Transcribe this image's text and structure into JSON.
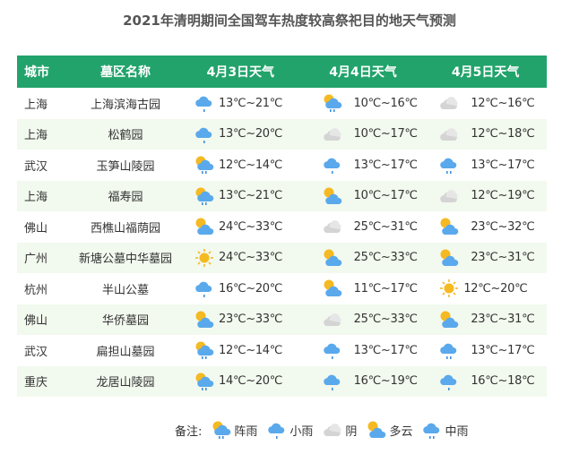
{
  "title": "2021年清明期间全国驾车热度较高祭祀目的地天气预测",
  "headers": [
    "城市",
    "墓区名称",
    "4月3日天气",
    "4月4日天气",
    "4月5日天气"
  ],
  "rows": [
    {
      "city": "上海",
      "name": "上海滨海古园",
      "days": [
        {
          "icon": "light-rain",
          "temp": "13℃~21℃"
        },
        {
          "icon": "shower",
          "temp": "10℃~16℃"
        },
        {
          "icon": "overcast",
          "temp": "12℃~16℃"
        }
      ]
    },
    {
      "city": "上海",
      "name": "松鹤园",
      "days": [
        {
          "icon": "light-rain",
          "temp": "13℃~20℃"
        },
        {
          "icon": "overcast",
          "temp": "10℃~17℃"
        },
        {
          "icon": "overcast",
          "temp": "12℃~18℃"
        }
      ]
    },
    {
      "city": "武汉",
      "name": "玉笋山陵园",
      "days": [
        {
          "icon": "shower",
          "temp": "12℃~14℃"
        },
        {
          "icon": "light-rain",
          "temp": "13℃~17℃"
        },
        {
          "icon": "moderate-rain",
          "temp": "13℃~17℃"
        }
      ]
    },
    {
      "city": "上海",
      "name": "福寿园",
      "days": [
        {
          "icon": "shower",
          "temp": "13℃~21℃"
        },
        {
          "icon": "partly-cloudy",
          "temp": "10℃~17℃"
        },
        {
          "icon": "overcast",
          "temp": "12℃~19℃"
        }
      ]
    },
    {
      "city": "佛山",
      "name": "西樵山福荫园",
      "days": [
        {
          "icon": "partly-cloudy",
          "temp": "24℃~33℃"
        },
        {
          "icon": "overcast",
          "temp": "25℃~31℃"
        },
        {
          "icon": "partly-cloudy",
          "temp": "23℃~32℃"
        }
      ]
    },
    {
      "city": "广州",
      "name": "新塘公墓中华墓园",
      "days": [
        {
          "icon": "sunny",
          "temp": "24℃~33℃"
        },
        {
          "icon": "partly-cloudy",
          "temp": "25℃~33℃"
        },
        {
          "icon": "partly-cloudy",
          "temp": "23℃~31℃"
        }
      ]
    },
    {
      "city": "杭州",
      "name": "半山公墓",
      "days": [
        {
          "icon": "light-rain",
          "temp": "16℃~20℃"
        },
        {
          "icon": "partly-cloudy",
          "temp": "11℃~17℃"
        },
        {
          "icon": "sunny",
          "temp": "12℃~20℃"
        }
      ]
    },
    {
      "city": "佛山",
      "name": "华侨墓园",
      "days": [
        {
          "icon": "partly-cloudy",
          "temp": "23℃~33℃"
        },
        {
          "icon": "overcast",
          "temp": "25℃~33℃"
        },
        {
          "icon": "partly-cloudy",
          "temp": "23℃~31℃"
        }
      ]
    },
    {
      "city": "武汉",
      "name": "扁担山墓园",
      "days": [
        {
          "icon": "shower",
          "temp": "12℃~14℃"
        },
        {
          "icon": "light-rain",
          "temp": "13℃~17℃"
        },
        {
          "icon": "moderate-rain",
          "temp": "13℃~17℃"
        }
      ]
    },
    {
      "city": "重庆",
      "name": "龙居山陵园",
      "days": [
        {
          "icon": "shower",
          "temp": "14℃~20℃"
        },
        {
          "icon": "light-rain",
          "temp": "16℃~19℃"
        },
        {
          "icon": "light-rain",
          "temp": "16℃~18℃"
        }
      ]
    }
  ],
  "legend": {
    "label": "备注:",
    "items": [
      {
        "icon": "shower",
        "label": "阵雨"
      },
      {
        "icon": "light-rain",
        "label": "小雨"
      },
      {
        "icon": "overcast",
        "label": "阴"
      },
      {
        "icon": "partly-cloudy",
        "label": "多云"
      },
      {
        "icon": "moderate-rain",
        "label": "中雨"
      }
    ]
  },
  "colors": {
    "header": "#22a36b",
    "stripe": "#f2f9ee",
    "sun": "#f5b921",
    "rain-cloud": "#5aa9ec",
    "overcast": "#cfcfcf"
  }
}
